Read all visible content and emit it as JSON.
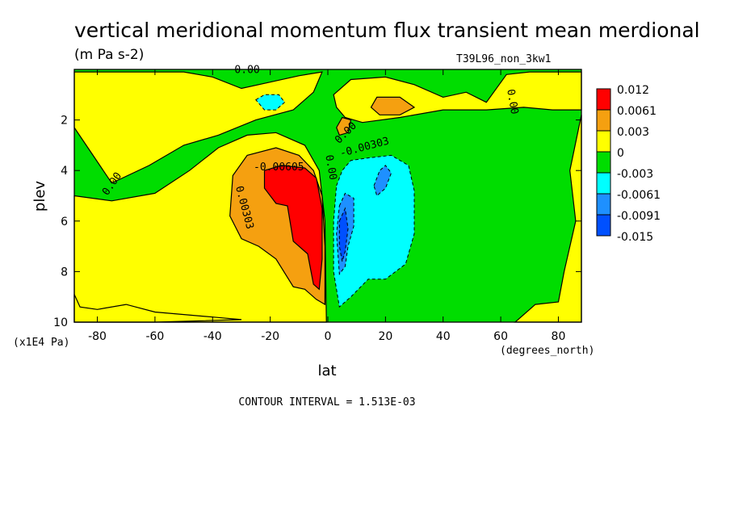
{
  "chart_data": {
    "type": "heatmap",
    "title": "vertical meridional momentum flux transient mean merdional",
    "units": "(m Pa s-2)",
    "run_label": "T39L96_non_3kw1",
    "xlabel": "lat",
    "xunits": "(degrees_north)",
    "ylabel": "plev",
    "yunits": "(x1E4 Pa)",
    "xlim": [
      -88,
      88
    ],
    "ylim": [
      10,
      0
    ],
    "x_ticks": [
      -80,
      -60,
      -40,
      -20,
      0,
      20,
      40,
      60,
      80
    ],
    "x_tick_labels": [
      "-80",
      "-60",
      "-40",
      "-20",
      "0",
      "20",
      "40",
      "60",
      "80"
    ],
    "y_ticks": [
      2,
      4,
      6,
      8,
      10
    ],
    "y_tick_labels": [
      "2",
      "4",
      "6",
      "8",
      "10"
    ],
    "contour_interval_text": "CONTOUR INTERVAL = 1.513E-03",
    "contour_labels": [
      {
        "text": "0.00",
        "lat": -28,
        "plev": 0.15,
        "angle": 0
      },
      {
        "text": "0.00",
        "lat": -74,
        "plev": 4.6,
        "angle": -55
      },
      {
        "text": "-0.00605",
        "lat": -17,
        "plev": 4.0,
        "angle": 0
      },
      {
        "text": "0.00303",
        "lat": -30,
        "plev": 5.5,
        "angle": 75
      },
      {
        "text": "-0.00303",
        "lat": 13,
        "plev": 3.2,
        "angle": -15
      },
      {
        "text": "0.00",
        "lat": 7,
        "plev": 2.6,
        "angle": -45
      },
      {
        "text": "0.00",
        "lat": 0,
        "plev": 3.9,
        "angle": 80
      },
      {
        "text": "0.00",
        "lat": 63,
        "plev": 1.3,
        "angle": 80
      }
    ],
    "legend": [
      {
        "label": "0.012",
        "color": "#ff0000"
      },
      {
        "label": "0.0061",
        "color": "#f5a010"
      },
      {
        "label": "0.003",
        "color": "#ffff00"
      },
      {
        "label": "0",
        "color": "#00dd00"
      },
      {
        "label": "-0.003",
        "color": "#00ffff"
      },
      {
        "label": "-0.0061",
        "color": "#1e90ff"
      },
      {
        "label": "-0.0091",
        "color": "#0050ff"
      },
      {
        "label": "-0.015",
        "color": ""
      }
    ],
    "regions": [
      {
        "level": "pos1",
        "color": "#ffff00",
        "pts": [
          [
            -88,
            2.3
          ],
          [
            -75,
            4.5
          ],
          [
            -62,
            3.8
          ],
          [
            -50,
            3.0
          ],
          [
            -38,
            2.6
          ],
          [
            -25,
            2.0
          ],
          [
            -12,
            1.6
          ],
          [
            -5,
            0.9
          ],
          [
            -2,
            0.1
          ],
          [
            -10,
            0.25
          ],
          [
            -20,
            0.5
          ],
          [
            -30,
            0.75
          ],
          [
            -40,
            0.3
          ],
          [
            -50,
            0.1
          ],
          [
            -88,
            0.1
          ]
        ]
      },
      {
        "level": "pos1",
        "color": "#ffff00",
        "pts": [
          [
            -88,
            5.0
          ],
          [
            -75,
            5.2
          ],
          [
            -60,
            4.9
          ],
          [
            -48,
            4.0
          ],
          [
            -38,
            3.1
          ],
          [
            -28,
            2.6
          ],
          [
            -18,
            2.5
          ],
          [
            -8,
            3.0
          ],
          [
            -3,
            4.0
          ],
          [
            -1,
            6.0
          ],
          [
            -0.5,
            10
          ],
          [
            -88,
            10
          ]
        ]
      },
      {
        "level": "pos1",
        "color": "#ffff00",
        "pts": [
          [
            2,
            1.0
          ],
          [
            8,
            0.4
          ],
          [
            20,
            0.3
          ],
          [
            30,
            0.6
          ],
          [
            40,
            1.1
          ],
          [
            48,
            0.9
          ],
          [
            55,
            1.3
          ],
          [
            62,
            0.2
          ],
          [
            70,
            0.1
          ],
          [
            88,
            0.1
          ],
          [
            88,
            1.6
          ],
          [
            78,
            1.6
          ],
          [
            68,
            1.5
          ],
          [
            55,
            1.6
          ],
          [
            40,
            1.6
          ],
          [
            25,
            1.9
          ],
          [
            12,
            2.1
          ],
          [
            6,
            1.9
          ],
          [
            3,
            1.5
          ]
        ]
      },
      {
        "level": "pos1",
        "color": "#ffff00",
        "pts": [
          [
            88,
            1.8
          ],
          [
            88,
            10
          ],
          [
            65,
            10
          ],
          [
            72,
            9.3
          ],
          [
            80,
            9.2
          ],
          [
            82,
            8.0
          ],
          [
            86,
            6.0
          ],
          [
            84,
            4.0
          ]
        ]
      },
      {
        "level": "pos1",
        "color": "#ffff00",
        "pts": [
          [
            -88,
            10
          ],
          [
            -88,
            8.9
          ],
          [
            -86,
            9.4
          ],
          [
            -80,
            9.5
          ],
          [
            -70,
            9.3
          ],
          [
            -60,
            9.6
          ],
          [
            -40,
            9.8
          ],
          [
            -30,
            9.9
          ],
          [
            -60,
            10
          ]
        ]
      },
      {
        "level": "pos2",
        "color": "#f5a010",
        "pts": [
          [
            -33,
            4.2
          ],
          [
            -28,
            3.4
          ],
          [
            -18,
            3.1
          ],
          [
            -10,
            3.4
          ],
          [
            -5,
            4.0
          ],
          [
            -2,
            5.0
          ],
          [
            -1,
            7.0
          ],
          [
            -1,
            9.3
          ],
          [
            -4,
            9.1
          ],
          [
            -8,
            8.7
          ],
          [
            -12,
            8.6
          ],
          [
            -18,
            7.5
          ],
          [
            -24,
            7.0
          ],
          [
            -30,
            6.7
          ],
          [
            -34,
            5.8
          ]
        ]
      },
      {
        "level": "pos2",
        "color": "#f5a010",
        "pts": [
          [
            15,
            1.5
          ],
          [
            17,
            1.1
          ],
          [
            25,
            1.1
          ],
          [
            30,
            1.5
          ],
          [
            25,
            1.8
          ],
          [
            18,
            1.8
          ]
        ]
      },
      {
        "level": "pos2",
        "color": "#f5a010",
        "pts": [
          [
            3,
            2.3
          ],
          [
            5,
            1.9
          ],
          [
            8,
            2.0
          ],
          [
            7,
            2.5
          ],
          [
            4,
            2.6
          ]
        ]
      },
      {
        "level": "pos3",
        "color": "#ff0000",
        "pts": [
          [
            -22,
            4.0
          ],
          [
            -16,
            3.8
          ],
          [
            -8,
            3.9
          ],
          [
            -4,
            4.3
          ],
          [
            -2,
            5.5
          ],
          [
            -2,
            7.5
          ],
          [
            -3,
            8.7
          ],
          [
            -5,
            8.5
          ],
          [
            -7,
            7.3
          ],
          [
            -12,
            6.8
          ],
          [
            -14,
            5.4
          ],
          [
            -18,
            5.3
          ],
          [
            -22,
            4.7
          ]
        ]
      },
      {
        "level": "neg1",
        "color": "#00ffff",
        "pts": [
          [
            3,
            4.6
          ],
          [
            5,
            4.0
          ],
          [
            8,
            3.6
          ],
          [
            14,
            3.5
          ],
          [
            22,
            3.4
          ],
          [
            28,
            3.8
          ],
          [
            30,
            4.8
          ],
          [
            30,
            6.5
          ],
          [
            27,
            7.7
          ],
          [
            20,
            8.3
          ],
          [
            14,
            8.3
          ],
          [
            8,
            9.0
          ],
          [
            4,
            9.4
          ],
          [
            2,
            8.0
          ],
          [
            2,
            6.0
          ]
        ]
      },
      {
        "level": "neg1",
        "color": "#00ffff",
        "pts": [
          [
            -25,
            1.2
          ],
          [
            -22,
            1.0
          ],
          [
            -17,
            1.0
          ],
          [
            -15,
            1.3
          ],
          [
            -18,
            1.6
          ],
          [
            -22,
            1.6
          ]
        ]
      },
      {
        "level": "neg2",
        "color": "#1e90ff",
        "pts": [
          [
            4,
            5.4
          ],
          [
            6,
            4.9
          ],
          [
            9,
            5.1
          ],
          [
            9,
            6.2
          ],
          [
            7,
            7.0
          ],
          [
            6,
            7.8
          ],
          [
            4,
            8.1
          ],
          [
            3,
            6.5
          ]
        ]
      },
      {
        "level": "neg2",
        "color": "#1e90ff",
        "pts": [
          [
            16,
            4.6
          ],
          [
            18,
            4.0
          ],
          [
            20,
            3.8
          ],
          [
            22,
            4.1
          ],
          [
            20,
            4.7
          ],
          [
            17,
            5.0
          ]
        ]
      },
      {
        "level": "neg3",
        "color": "#0050ff",
        "pts": [
          [
            4,
            6.0
          ],
          [
            6,
            5.5
          ],
          [
            7,
            6.3
          ],
          [
            6,
            7.2
          ],
          [
            5,
            7.6
          ],
          [
            4,
            7.0
          ]
        ]
      }
    ]
  }
}
